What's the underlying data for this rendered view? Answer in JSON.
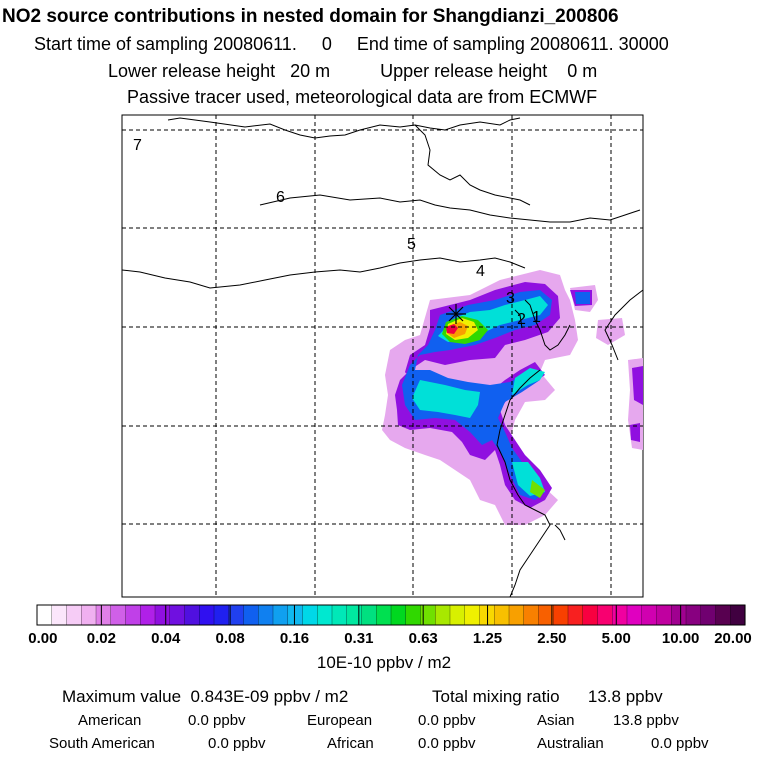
{
  "header": {
    "title": "NO2 source contributions in nested domain for Shangdianzi_200806",
    "line1": "Start time of sampling 20080611.     0     End time of sampling 20080611. 30000",
    "line2": "Lower release height   20 m          Upper release height    0 m",
    "line3": "Passive tracer used, meteorological data are from ECMWF"
  },
  "chart_data": {
    "type": "heatmap",
    "title": "NO2 source contributions in nested domain for Shangdianzi_200806",
    "variable": "NO2 source contribution",
    "units": "10E-10 ppbv / m2",
    "receptor": "Shangdianzi",
    "start_time": "20080611.     0",
    "end_time": "20080611. 30000",
    "lower_release_height": "20 m",
    "upper_release_height": "0 m",
    "meteorology": "ECMWF",
    "tracer": "Passive",
    "grid": "dashed",
    "trajectory_labels": [
      "7",
      "6",
      "5",
      "4",
      "3",
      "2",
      "1"
    ],
    "colorbar": {
      "levels": [
        "0.00",
        "0.02",
        "0.04",
        "0.08",
        "0.16",
        "0.31",
        "0.63",
        "1.25",
        "2.50",
        "5.00",
        "10.00",
        "20.00"
      ],
      "colors": [
        "#ffffff",
        "#fbe6fb",
        "#f6ccf6",
        "#f0b0f0",
        "#e080e8",
        "#d060e8",
        "#c040e8",
        "#b020e8",
        "#9010e0",
        "#7010e0",
        "#5010e0",
        "#3010f0",
        "#2020f0",
        "#2040f0",
        "#1060f0",
        "#1080f0",
        "#10a0f0",
        "#10b8f0",
        "#00d8e8",
        "#00e8d0",
        "#00e8b8",
        "#00e8a0",
        "#00e080",
        "#00e050",
        "#00d820",
        "#30d800",
        "#70e000",
        "#a8e800",
        "#d8f000",
        "#f0f000",
        "#f8d800",
        "#f8c000",
        "#f8a000",
        "#f88000",
        "#f86000",
        "#f84000",
        "#f82020",
        "#f80040",
        "#f80070",
        "#f000a0",
        "#e000c0",
        "#d000b0",
        "#c000a0",
        "#a00090",
        "#880080",
        "#700070",
        "#580050",
        "#400040"
      ]
    }
  },
  "summary": {
    "max_line": "Maximum value  0.843E-09 ppbv / m2",
    "total_line": "Total mixing ratio      13.8 ppbv",
    "american": {
      "label": "American",
      "value": "0.0 ppbv"
    },
    "european": {
      "label": "European",
      "value": "0.0 ppbv"
    },
    "asian": {
      "label": "Asian",
      "value": "13.8 ppbv"
    },
    "south_american": {
      "label": "South American",
      "value": "0.0 ppbv"
    },
    "african": {
      "label": "African",
      "value": "0.0 ppbv"
    },
    "australian": {
      "label": "Australian",
      "value": "0.0 ppbv"
    }
  }
}
